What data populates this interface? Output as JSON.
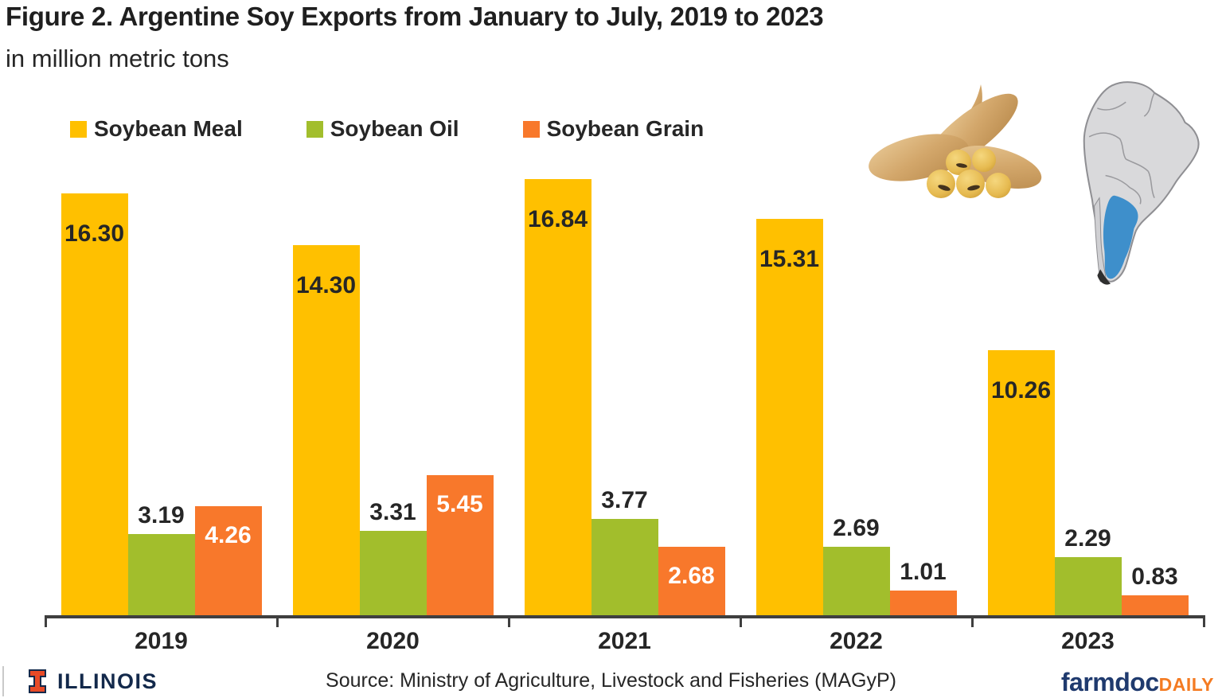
{
  "title": "Figure 2. Argentine Soy Exports from January to July, 2019 to 2023",
  "subtitle": "in million metric tons",
  "legend": [
    {
      "label": "Soybean Meal",
      "color": "#FFC000"
    },
    {
      "label": "Soybean Oil",
      "color": "#A2BE2C"
    },
    {
      "label": "Soybean Grain",
      "color": "#F8782B"
    }
  ],
  "chart_data": {
    "type": "bar",
    "title": "Argentine Soy Exports from January to July, 2019 to 2023",
    "unit": "million metric tons",
    "categories": [
      "2019",
      "2020",
      "2021",
      "2022",
      "2023"
    ],
    "series": [
      {
        "name": "Soybean Meal",
        "color": "#FFC000",
        "values": [
          16.3,
          14.3,
          16.84,
          15.31,
          10.26
        ],
        "label_placement": "inside",
        "label_color": "#262626"
      },
      {
        "name": "Soybean Oil",
        "color": "#A2BE2C",
        "values": [
          3.19,
          3.31,
          3.77,
          2.69,
          2.29
        ],
        "label_placement": "above",
        "label_color": "#262626"
      },
      {
        "name": "Soybean Grain",
        "color": "#F8782B",
        "values": [
          4.26,
          5.45,
          2.68,
          1.01,
          0.83
        ],
        "label_placement": "inside-or-above",
        "label_color": "#FFFFFF"
      }
    ],
    "value_format": "0.00",
    "ylim": [
      0,
      17
    ],
    "grid": false,
    "legend_position": "top-left"
  },
  "footer": {
    "illinois_logo_text": "ILLINOIS",
    "source": "Source: Ministry of Agriculture, Livestock and Fisheries (MAGyP)",
    "farmdoc": "farmdoc",
    "daily": "DAILY"
  },
  "images": {
    "soybean": "soybean-pods-and-beans-illustration",
    "map": "south-america-map-argentina-highlighted-blue"
  },
  "colors": {
    "axis": "#3F3F3F",
    "text": "#262626",
    "illinois_block_i": "#E84A27",
    "illinois_navy": "#13294B",
    "farmdoc_navy": "#1F3A6E",
    "daily_orange": "#F47B22",
    "map_land": "#D9D9DB",
    "map_border": "#8F8F93",
    "map_argentina": "#3E8FCB"
  }
}
